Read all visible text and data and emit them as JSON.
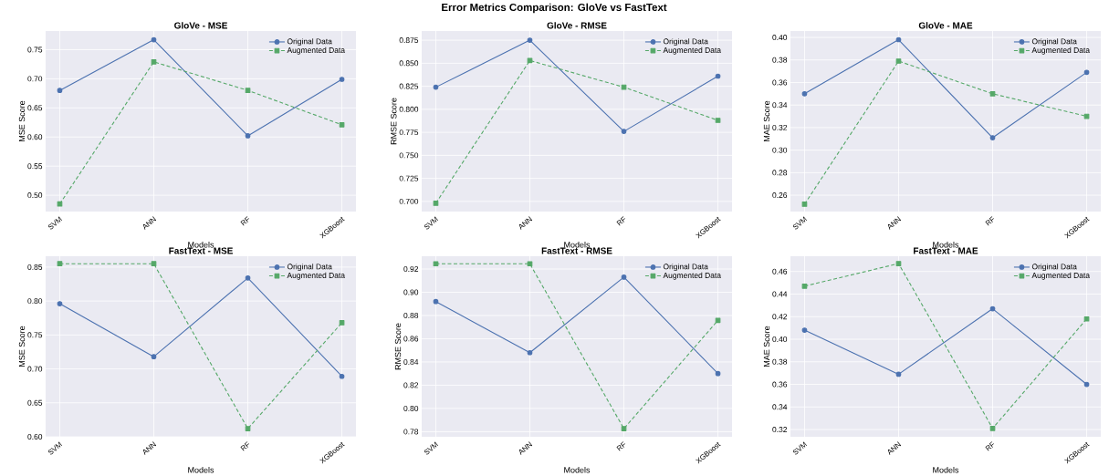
{
  "chart_data": [
    {
      "type": "line",
      "title": "GloVe - MSE",
      "xlabel": "Models",
      "ylabel": "MSE Score",
      "annotations": [
        "Error Metrics Comparison: GloVe vs FastText"
      ],
      "categories": [
        "SVM",
        "ANN",
        "RF",
        "XGBoost"
      ],
      "series": [
        {
          "name": "Original Data",
          "color": "#4c72b0",
          "marker": "circle",
          "line_style": "solid",
          "values": [
            0.68,
            0.767,
            0.602,
            0.699
          ]
        },
        {
          "name": "Augmented Data",
          "color": "#55a868",
          "marker": "square",
          "line_style": "dashed",
          "values": [
            0.485,
            0.729,
            0.68,
            0.621
          ]
        }
      ],
      "ylim": [
        0.472,
        0.782
      ],
      "yticks": [
        {
          "value": 0.5,
          "label": "0.50"
        },
        {
          "value": 0.55,
          "label": "0.55"
        },
        {
          "value": 0.6,
          "label": "0.60"
        },
        {
          "value": 0.65,
          "label": "0.65"
        },
        {
          "value": 0.7,
          "label": "0.70"
        },
        {
          "value": 0.75,
          "label": "0.75"
        }
      ],
      "grid": true,
      "legend": "top right"
    },
    {
      "type": "line",
      "title": "GloVe - RMSE",
      "xlabel": "Models",
      "ylabel": "RMSE Score",
      "categories": [
        "SVM",
        "ANN",
        "RF",
        "XGBoost"
      ],
      "series": [
        {
          "name": "Original Data",
          "color": "#4c72b0",
          "marker": "circle",
          "line_style": "solid",
          "values": [
            0.824,
            0.875,
            0.776,
            0.836
          ]
        },
        {
          "name": "Augmented Data",
          "color": "#55a868",
          "marker": "square",
          "line_style": "dashed",
          "values": [
            0.698,
            0.853,
            0.824,
            0.788
          ]
        }
      ],
      "ylim": [
        0.689,
        0.885
      ],
      "yticks": [
        {
          "value": 0.7,
          "label": "0.700"
        },
        {
          "value": 0.725,
          "label": "0.725"
        },
        {
          "value": 0.75,
          "label": "0.750"
        },
        {
          "value": 0.775,
          "label": "0.775"
        },
        {
          "value": 0.8,
          "label": "0.800"
        },
        {
          "value": 0.825,
          "label": "0.825"
        },
        {
          "value": 0.85,
          "label": "0.850"
        },
        {
          "value": 0.875,
          "label": "0.875"
        }
      ],
      "grid": true,
      "legend": "top right"
    },
    {
      "type": "line",
      "title": "GloVe - MAE",
      "xlabel": "Models",
      "ylabel": "MAE Score",
      "categories": [
        "SVM",
        "ANN",
        "RF",
        "XGBoost"
      ],
      "series": [
        {
          "name": "Original Data",
          "color": "#4c72b0",
          "marker": "circle",
          "line_style": "solid",
          "values": [
            0.35,
            0.398,
            0.311,
            0.369
          ]
        },
        {
          "name": "Augmented Data",
          "color": "#55a868",
          "marker": "square",
          "line_style": "dashed",
          "values": [
            0.252,
            0.379,
            0.35,
            0.33
          ]
        }
      ],
      "ylim": [
        0.2455,
        0.4057
      ],
      "yticks": [
        {
          "value": 0.26,
          "label": "0.26"
        },
        {
          "value": 0.28,
          "label": "0.28"
        },
        {
          "value": 0.3,
          "label": "0.30"
        },
        {
          "value": 0.32,
          "label": "0.32"
        },
        {
          "value": 0.34,
          "label": "0.34"
        },
        {
          "value": 0.36,
          "label": "0.36"
        },
        {
          "value": 0.38,
          "label": "0.38"
        },
        {
          "value": 0.4,
          "label": "0.40"
        }
      ],
      "grid": true,
      "legend": "top right"
    },
    {
      "type": "line",
      "title": "FastText - MSE",
      "xlabel": "Models",
      "ylabel": "MSE Score",
      "categories": [
        "SVM",
        "ANN",
        "RF",
        "XGBoost"
      ],
      "series": [
        {
          "name": "Original Data",
          "color": "#4c72b0",
          "marker": "circle",
          "line_style": "solid",
          "values": [
            0.796,
            0.718,
            0.834,
            0.689
          ]
        },
        {
          "name": "Augmented Data",
          "color": "#55a868",
          "marker": "square",
          "line_style": "dashed",
          "values": [
            0.855,
            0.855,
            0.612,
            0.768
          ]
        }
      ],
      "ylim": [
        0.6,
        0.866
      ],
      "yticks": [
        {
          "value": 0.6,
          "label": "0.60"
        },
        {
          "value": 0.65,
          "label": "0.65"
        },
        {
          "value": 0.7,
          "label": "0.70"
        },
        {
          "value": 0.75,
          "label": "0.75"
        },
        {
          "value": 0.8,
          "label": "0.80"
        },
        {
          "value": 0.85,
          "label": "0.85"
        }
      ],
      "grid": true,
      "legend": "top right"
    },
    {
      "type": "line",
      "title": "FastText - RMSE",
      "xlabel": "Models",
      "ylabel": "RMSE Score",
      "categories": [
        "SVM",
        "ANN",
        "RF",
        "XGBoost"
      ],
      "series": [
        {
          "name": "Original Data",
          "color": "#4c72b0",
          "marker": "circle",
          "line_style": "solid",
          "values": [
            0.892,
            0.848,
            0.913,
            0.83
          ]
        },
        {
          "name": "Augmented Data",
          "color": "#55a868",
          "marker": "square",
          "line_style": "dashed",
          "values": [
            0.9245,
            0.9245,
            0.7826,
            0.8758
          ]
        }
      ],
      "ylim": [
        0.7756,
        0.931
      ],
      "yticks": [
        {
          "value": 0.78,
          "label": "0.78"
        },
        {
          "value": 0.8,
          "label": "0.80"
        },
        {
          "value": 0.82,
          "label": "0.82"
        },
        {
          "value": 0.84,
          "label": "0.84"
        },
        {
          "value": 0.86,
          "label": "0.86"
        },
        {
          "value": 0.88,
          "label": "0.88"
        },
        {
          "value": 0.9,
          "label": "0.90"
        },
        {
          "value": 0.92,
          "label": "0.92"
        }
      ],
      "grid": true,
      "legend": "top right"
    },
    {
      "type": "line",
      "title": "FastText - MAE",
      "xlabel": "Models",
      "ylabel": "MAE Score",
      "categories": [
        "SVM",
        "ANN",
        "RF",
        "XGBoost"
      ],
      "series": [
        {
          "name": "Original Data",
          "color": "#4c72b0",
          "marker": "circle",
          "line_style": "solid",
          "values": [
            0.408,
            0.369,
            0.427,
            0.36
          ]
        },
        {
          "name": "Augmented Data",
          "color": "#55a868",
          "marker": "square",
          "line_style": "dashed",
          "values": [
            0.447,
            0.467,
            0.321,
            0.418
          ]
        }
      ],
      "ylim": [
        0.3136,
        0.4735
      ],
      "yticks": [
        {
          "value": 0.32,
          "label": "0.32"
        },
        {
          "value": 0.34,
          "label": "0.34"
        },
        {
          "value": 0.36,
          "label": "0.36"
        },
        {
          "value": 0.38,
          "label": "0.38"
        },
        {
          "value": 0.4,
          "label": "0.40"
        },
        {
          "value": 0.42,
          "label": "0.42"
        },
        {
          "value": 0.44,
          "label": "0.44"
        },
        {
          "value": 0.46,
          "label": "0.46"
        }
      ],
      "grid": true,
      "legend": "top right"
    }
  ]
}
